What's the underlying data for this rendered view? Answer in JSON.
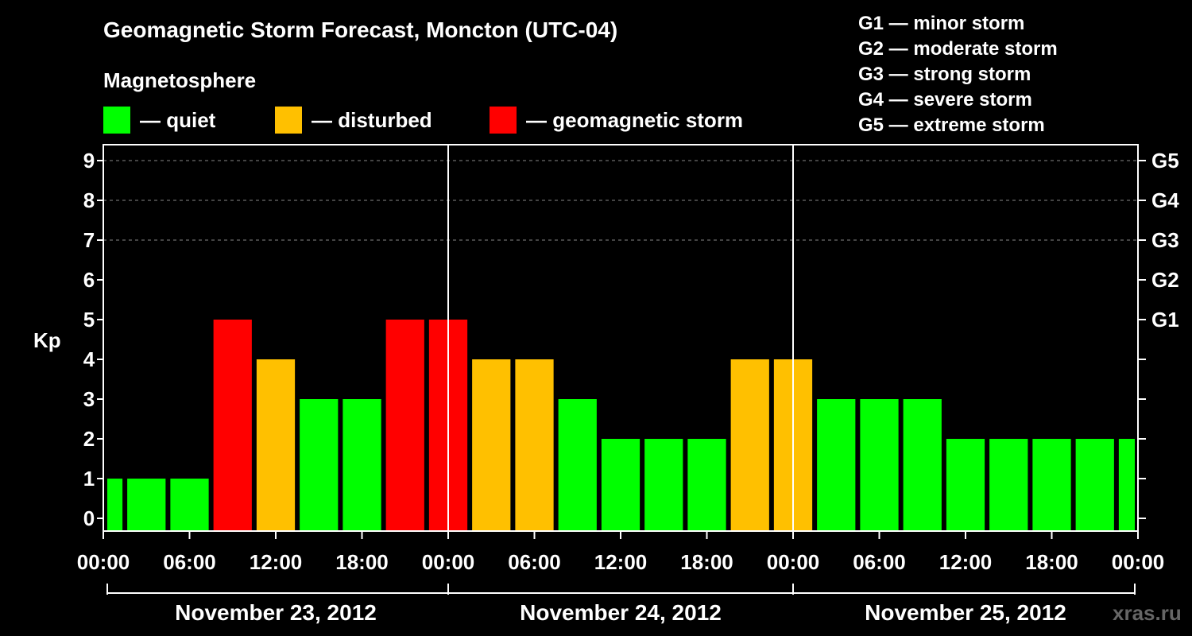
{
  "header": {
    "title": "Geomagnetic Storm Forecast, Moncton (UTC-04)",
    "subtitle": "Magnetosphere"
  },
  "legend": [
    {
      "label": "— quiet",
      "color": "#00ff00"
    },
    {
      "label": "— disturbed",
      "color": "#ffc000"
    },
    {
      "label": "— geomagnetic storm",
      "color": "#ff0000"
    }
  ],
  "storm_scale": [
    "G1 — minor storm",
    "G2 — moderate storm",
    "G3 — strong storm",
    "G4 — severe storm",
    "G5 — extreme storm"
  ],
  "watermark": "xras.ru",
  "chart_data": {
    "type": "bar",
    "ylabel": "Kp",
    "ylim": [
      0,
      9
    ],
    "grid": "horizontal dashed at 7, 8, 9",
    "y_ticks": [
      "0",
      "1",
      "2",
      "3",
      "4",
      "5",
      "6",
      "7",
      "8",
      "9"
    ],
    "right_axis": [
      {
        "kp": 5,
        "label": "G1"
      },
      {
        "kp": 6,
        "label": "G2"
      },
      {
        "kp": 7,
        "label": "G3"
      },
      {
        "kp": 8,
        "label": "G4"
      },
      {
        "kp": 9,
        "label": "G5"
      }
    ],
    "x_ticks": [
      "00:00",
      "06:00",
      "12:00",
      "18:00",
      "00:00",
      "06:00",
      "12:00",
      "18:00",
      "00:00",
      "06:00",
      "12:00",
      "18:00",
      "00:00"
    ],
    "days": [
      "November 23, 2012",
      "November 24, 2012",
      "November 25, 2012"
    ],
    "interval_hours": 3,
    "values": [
      1,
      1,
      1,
      5,
      4,
      3,
      3,
      5,
      5,
      4,
      4,
      3,
      2,
      2,
      2,
      4,
      4,
      3,
      3,
      3,
      2,
      2,
      2,
      2,
      2
    ],
    "colors": {
      "quiet": "#00ff00",
      "disturbed": "#ffc000",
      "storm": "#ff0000"
    }
  }
}
